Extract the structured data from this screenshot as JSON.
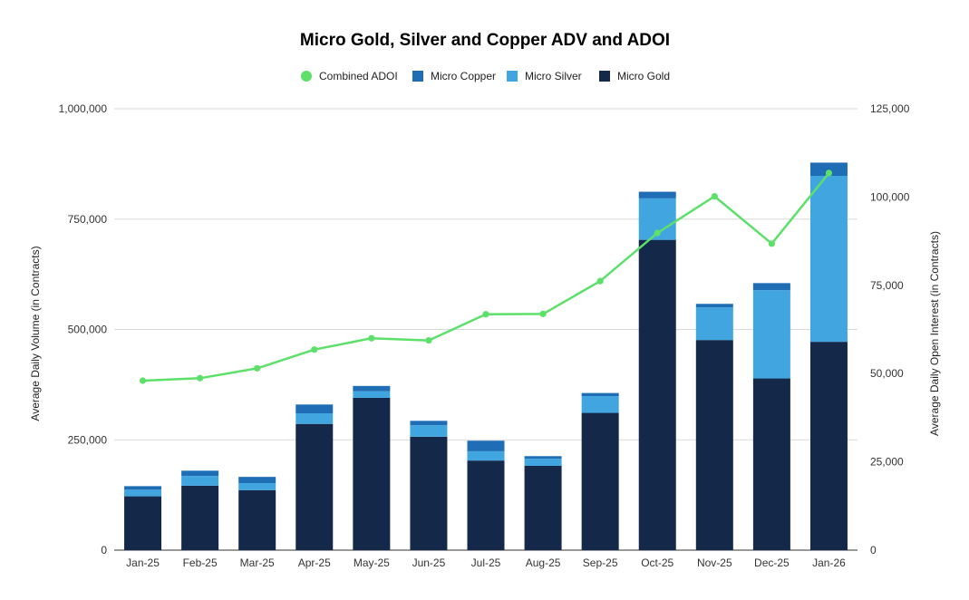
{
  "chart_data": {
    "type": "bar",
    "title": "Micro Gold, Silver and Copper ADV and ADOI",
    "categories": [
      "Jan-25",
      "Feb-25",
      "Mar-25",
      "Apr-25",
      "May-25",
      "Jun-25",
      "Jul-25",
      "Aug-25",
      "Sep-25",
      "Oct-25",
      "Nov-25",
      "Dec-25",
      "Jan-26"
    ],
    "ylabel_left": "Average Daily Volume (in Contracts)",
    "ylabel_right": "Average Daily Open Interest (in Contracts)",
    "ylim_left": [
      0,
      1000000
    ],
    "ylim_right": [
      0,
      125000
    ],
    "yticks_left": [
      {
        "value": 0,
        "label": "0"
      },
      {
        "value": 250000,
        "label": "250,000"
      },
      {
        "value": 500000,
        "label": "500,000"
      },
      {
        "value": 750000,
        "label": "750,000"
      },
      {
        "value": 1000000,
        "label": "1,000,000"
      }
    ],
    "yticks_right": [
      {
        "value": 0,
        "label": "0"
      },
      {
        "value": 25000,
        "label": "25,000"
      },
      {
        "value": 50000,
        "label": "50,000"
      },
      {
        "value": 75000,
        "label": "75,000"
      },
      {
        "value": 100000,
        "label": "100,000"
      },
      {
        "value": 125000,
        "label": "125,000"
      }
    ],
    "grid": true,
    "legend_position": "top-center",
    "legend": [
      {
        "name": "Combined ADOI",
        "color": "#5ce06a",
        "marker": "circle"
      },
      {
        "name": "Micro Copper",
        "color": "#1f6eb5",
        "marker": "square"
      },
      {
        "name": "Micro Silver",
        "color": "#41a6e0",
        "marker": "square"
      },
      {
        "name": "Micro Gold",
        "color": "#14284a",
        "marker": "square"
      }
    ],
    "series": [
      {
        "name": "Micro Gold",
        "kind": "stacked-bar",
        "axis": "left",
        "color": "#14284a",
        "values": [
          122000,
          146000,
          136000,
          286000,
          345000,
          257000,
          203000,
          191000,
          311000,
          703000,
          476000,
          389000,
          472000
        ]
      },
      {
        "name": "Micro Silver",
        "kind": "stacked-bar",
        "axis": "left",
        "color": "#41a6e0",
        "values": [
          15000,
          22000,
          16000,
          24000,
          15000,
          26000,
          21000,
          16000,
          38000,
          94000,
          74000,
          200000,
          376000
        ]
      },
      {
        "name": "Micro Copper",
        "kind": "stacked-bar",
        "axis": "left",
        "color": "#1f6eb5",
        "values": [
          8000,
          12000,
          14000,
          20000,
          12000,
          10000,
          24000,
          6000,
          7000,
          15000,
          8000,
          16000,
          30000
        ]
      },
      {
        "name": "Combined ADOI",
        "kind": "line",
        "axis": "right",
        "color": "#5ce06a",
        "values": [
          48000,
          48700,
          51500,
          56800,
          60000,
          59400,
          66800,
          66900,
          76200,
          89800,
          100200,
          86800,
          106800
        ]
      }
    ]
  }
}
